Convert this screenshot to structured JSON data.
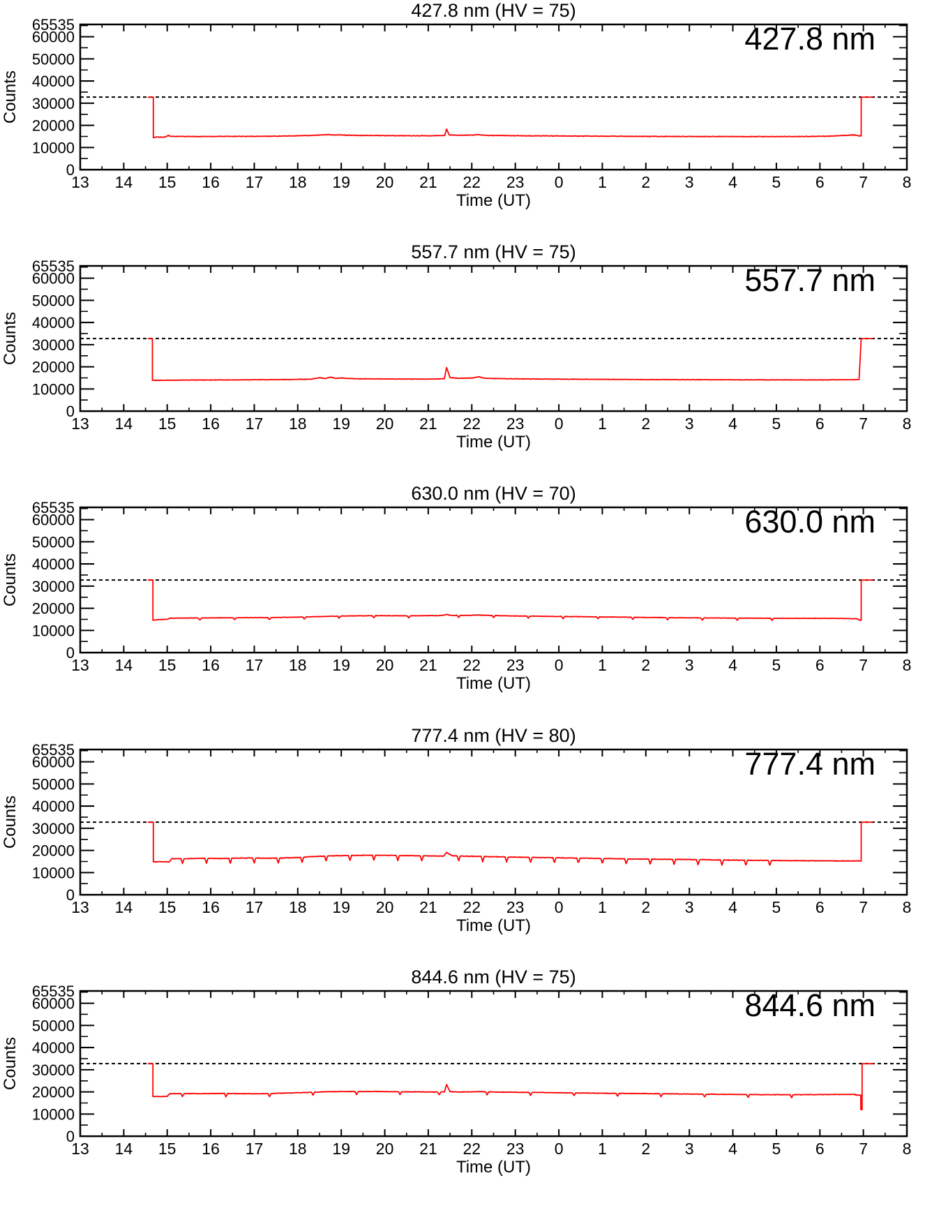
{
  "figure": {
    "background_color": "#ffffff",
    "series_color": "#ff0000",
    "axis_color": "#000000",
    "ylabel": "Counts",
    "xlabel": "Time (UT)",
    "x_tick_labels": [
      "13",
      "14",
      "15",
      "16",
      "17",
      "18",
      "19",
      "20",
      "21",
      "22",
      "23",
      "0",
      "1",
      "2",
      "3",
      "4",
      "5",
      "6",
      "7",
      "8"
    ],
    "x_start_hour": 13,
    "x_span_hours": 19,
    "y_major_ticks": [
      0,
      10000,
      20000,
      30000,
      40000,
      50000,
      60000
    ],
    "y_top_tick": 65535,
    "y_minor_step": 5000,
    "ylim": [
      0,
      65535
    ],
    "saturation_level": 32767
  },
  "chart_data": [
    {
      "type": "line",
      "title": "427.8 nm (HV = 75)",
      "label": "427.8 nm",
      "hv": 75,
      "noise_counts": 120,
      "dips": {
        "times": [],
        "depth": 0
      },
      "points": [
        [
          14.55,
          32700
        ],
        [
          14.68,
          32700
        ],
        [
          14.68,
          14400
        ],
        [
          14.75,
          14700
        ],
        [
          14.95,
          14700
        ],
        [
          15.02,
          15500
        ],
        [
          15.08,
          15000
        ],
        [
          15.3,
          15000
        ],
        [
          15.6,
          14950
        ],
        [
          16.0,
          15000
        ],
        [
          16.4,
          15050
        ],
        [
          16.8,
          15000
        ],
        [
          17.2,
          15050
        ],
        [
          17.6,
          15150
        ],
        [
          18.0,
          15300
        ],
        [
          18.3,
          15450
        ],
        [
          18.55,
          15650
        ],
        [
          18.7,
          15850
        ],
        [
          18.8,
          15600
        ],
        [
          18.95,
          15750
        ],
        [
          19.1,
          15550
        ],
        [
          19.4,
          15450
        ],
        [
          19.8,
          15400
        ],
        [
          20.2,
          15350
        ],
        [
          20.6,
          15300
        ],
        [
          21.0,
          15300
        ],
        [
          21.3,
          15400
        ],
        [
          21.38,
          15500
        ],
        [
          21.42,
          18300
        ],
        [
          21.48,
          15700
        ],
        [
          21.7,
          15550
        ],
        [
          22.0,
          15600
        ],
        [
          22.15,
          15850
        ],
        [
          22.3,
          15500
        ],
        [
          22.7,
          15400
        ],
        [
          23.2,
          15300
        ],
        [
          23.8,
          15250
        ],
        [
          0.5,
          15150
        ],
        [
          1.5,
          15050
        ],
        [
          2.5,
          15000
        ],
        [
          3.5,
          14950
        ],
        [
          4.5,
          14900
        ],
        [
          5.5,
          14950
        ],
        [
          6.2,
          15100
        ],
        [
          6.6,
          15500
        ],
        [
          6.8,
          15650
        ],
        [
          6.88,
          15300
        ],
        [
          6.95,
          15300
        ],
        [
          6.95,
          32700
        ],
        [
          7.22,
          32700
        ]
      ]
    },
    {
      "type": "line",
      "title": "557.7 nm (HV = 75)",
      "label": "557.7 nm",
      "hv": 75,
      "noise_counts": 100,
      "dips": {
        "times": [],
        "depth": 0
      },
      "points": [
        [
          14.55,
          32700
        ],
        [
          14.66,
          32700
        ],
        [
          14.66,
          13900
        ],
        [
          15.0,
          13950
        ],
        [
          15.4,
          14000
        ],
        [
          15.9,
          14050
        ],
        [
          16.4,
          14100
        ],
        [
          16.9,
          14150
        ],
        [
          17.4,
          14200
        ],
        [
          17.9,
          14300
        ],
        [
          18.3,
          14400
        ],
        [
          18.5,
          15100
        ],
        [
          18.62,
          14700
        ],
        [
          18.75,
          15300
        ],
        [
          18.88,
          14800
        ],
        [
          19.0,
          15000
        ],
        [
          19.15,
          14700
        ],
        [
          19.4,
          14600
        ],
        [
          19.8,
          14550
        ],
        [
          20.3,
          14500
        ],
        [
          20.8,
          14450
        ],
        [
          21.2,
          14500
        ],
        [
          21.37,
          14650
        ],
        [
          21.42,
          19700
        ],
        [
          21.5,
          15100
        ],
        [
          21.7,
          14800
        ],
        [
          22.0,
          14950
        ],
        [
          22.15,
          15500
        ],
        [
          22.3,
          14850
        ],
        [
          22.6,
          14700
        ],
        [
          23.0,
          14600
        ],
        [
          23.5,
          14500
        ],
        [
          0.2,
          14400
        ],
        [
          1.0,
          14350
        ],
        [
          2.0,
          14250
        ],
        [
          3.0,
          14200
        ],
        [
          4.0,
          14150
        ],
        [
          5.0,
          14100
        ],
        [
          6.0,
          14100
        ],
        [
          6.5,
          14150
        ],
        [
          6.9,
          14200
        ],
        [
          6.95,
          32700
        ],
        [
          7.22,
          32700
        ]
      ]
    },
    {
      "type": "line",
      "title": "630.0 nm (HV = 70)",
      "label": "630.0 nm",
      "hv": 70,
      "noise_counts": 90,
      "dips": {
        "times": [
          15.75,
          16.55,
          17.35,
          18.15,
          18.95,
          19.75,
          20.55,
          21.7,
          22.5,
          23.3,
          0.1,
          0.9,
          1.7,
          2.5,
          3.3,
          4.1,
          4.9
        ],
        "depth": 1000
      },
      "points": [
        [
          14.55,
          32700
        ],
        [
          14.67,
          32700
        ],
        [
          14.67,
          14600
        ],
        [
          14.8,
          14900
        ],
        [
          15.0,
          15000
        ],
        [
          15.05,
          15500
        ],
        [
          15.4,
          15600
        ],
        [
          15.9,
          15650
        ],
        [
          16.4,
          15700
        ],
        [
          16.9,
          15750
        ],
        [
          17.4,
          15800
        ],
        [
          17.9,
          15950
        ],
        [
          18.4,
          16200
        ],
        [
          18.9,
          16450
        ],
        [
          19.4,
          16600
        ],
        [
          19.9,
          16650
        ],
        [
          20.4,
          16600
        ],
        [
          20.9,
          16650
        ],
        [
          21.3,
          16700
        ],
        [
          21.42,
          17200
        ],
        [
          21.55,
          16750
        ],
        [
          21.9,
          16800
        ],
        [
          22.15,
          16950
        ],
        [
          22.4,
          16750
        ],
        [
          22.9,
          16550
        ],
        [
          23.4,
          16450
        ],
        [
          0.0,
          16300
        ],
        [
          0.6,
          16200
        ],
        [
          1.2,
          16050
        ],
        [
          1.9,
          15900
        ],
        [
          2.6,
          15750
        ],
        [
          3.3,
          15650
        ],
        [
          4.0,
          15550
        ],
        [
          4.7,
          15500
        ],
        [
          5.4,
          15450
        ],
        [
          6.0,
          15450
        ],
        [
          6.5,
          15400
        ],
        [
          6.85,
          15300
        ],
        [
          6.92,
          14600
        ],
        [
          6.95,
          14600
        ],
        [
          6.95,
          32700
        ],
        [
          7.22,
          32700
        ]
      ]
    },
    {
      "type": "line",
      "title": "777.4 nm (HV = 80)",
      "label": "777.4 nm",
      "hv": 80,
      "noise_counts": 130,
      "dips": {
        "times": [
          15.35,
          15.9,
          16.45,
          17.0,
          17.55,
          18.1,
          18.65,
          19.2,
          19.75,
          20.3,
          20.85,
          21.7,
          22.25,
          22.8,
          23.35,
          23.9,
          0.45,
          1.0,
          1.55,
          2.1,
          2.65,
          3.2,
          3.75,
          4.3,
          4.85
        ],
        "depth": 2300
      },
      "points": [
        [
          14.55,
          32700
        ],
        [
          14.68,
          32700
        ],
        [
          14.68,
          14850
        ],
        [
          15.05,
          14850
        ],
        [
          15.1,
          16250
        ],
        [
          15.45,
          16300
        ],
        [
          15.85,
          16450
        ],
        [
          16.2,
          16350
        ],
        [
          16.6,
          16500
        ],
        [
          17.0,
          16600
        ],
        [
          17.35,
          16500
        ],
        [
          17.7,
          16600
        ],
        [
          18.05,
          16850
        ],
        [
          18.4,
          17250
        ],
        [
          18.7,
          17550
        ],
        [
          19.0,
          17650
        ],
        [
          19.35,
          17750
        ],
        [
          19.7,
          17850
        ],
        [
          20.0,
          17800
        ],
        [
          20.35,
          17700
        ],
        [
          20.7,
          17600
        ],
        [
          21.05,
          17500
        ],
        [
          21.35,
          17450
        ],
        [
          21.42,
          19100
        ],
        [
          21.55,
          17550
        ],
        [
          21.8,
          17450
        ],
        [
          22.1,
          17300
        ],
        [
          22.4,
          17200
        ],
        [
          22.8,
          17050
        ],
        [
          23.2,
          16900
        ],
        [
          23.7,
          16750
        ],
        [
          0.2,
          16600
        ],
        [
          0.7,
          16450
        ],
        [
          1.2,
          16300
        ],
        [
          1.7,
          16150
        ],
        [
          2.2,
          16050
        ],
        [
          2.7,
          15950
        ],
        [
          3.2,
          15850
        ],
        [
          3.7,
          15700
        ],
        [
          4.2,
          15600
        ],
        [
          4.7,
          15500
        ],
        [
          5.2,
          15400
        ],
        [
          5.7,
          15350
        ],
        [
          6.2,
          15300
        ],
        [
          6.6,
          15250
        ],
        [
          6.95,
          15250
        ],
        [
          6.95,
          32700
        ],
        [
          7.22,
          32700
        ]
      ]
    },
    {
      "type": "line",
      "title": "844.6 nm (HV = 75)",
      "label": "844.6 nm",
      "hv": 75,
      "noise_counts": 110,
      "dips": {
        "times": [
          15.35,
          16.35,
          17.35,
          18.35,
          19.35,
          20.35,
          21.25,
          22.35,
          23.35,
          0.35,
          1.35,
          2.35,
          3.35,
          4.35,
          5.35
        ],
        "depth": 1400
      },
      "points": [
        [
          14.55,
          32700
        ],
        [
          14.67,
          32700
        ],
        [
          14.67,
          17900
        ],
        [
          15.0,
          17950
        ],
        [
          15.05,
          19150
        ],
        [
          15.4,
          19250
        ],
        [
          15.8,
          19200
        ],
        [
          16.2,
          19300
        ],
        [
          16.6,
          19200
        ],
        [
          17.0,
          19150
        ],
        [
          17.35,
          19250
        ],
        [
          17.7,
          19450
        ],
        [
          18.05,
          19650
        ],
        [
          18.4,
          19900
        ],
        [
          18.75,
          20100
        ],
        [
          19.1,
          20200
        ],
        [
          19.45,
          20150
        ],
        [
          19.8,
          20200
        ],
        [
          20.1,
          20100
        ],
        [
          20.45,
          20050
        ],
        [
          20.8,
          20000
        ],
        [
          21.1,
          19950
        ],
        [
          21.37,
          19950
        ],
        [
          21.42,
          23300
        ],
        [
          21.5,
          20100
        ],
        [
          21.75,
          19950
        ],
        [
          22.0,
          20000
        ],
        [
          22.2,
          20150
        ],
        [
          22.5,
          19950
        ],
        [
          22.9,
          19850
        ],
        [
          23.4,
          19750
        ],
        [
          0.0,
          19600
        ],
        [
          0.6,
          19500
        ],
        [
          1.2,
          19350
        ],
        [
          1.8,
          19250
        ],
        [
          2.4,
          19150
        ],
        [
          3.0,
          19000
        ],
        [
          3.6,
          18900
        ],
        [
          4.2,
          18850
        ],
        [
          4.8,
          18750
        ],
        [
          5.4,
          18750
        ],
        [
          6.0,
          18800
        ],
        [
          6.5,
          18850
        ],
        [
          6.82,
          18850
        ],
        [
          6.82,
          18550
        ],
        [
          6.94,
          18550
        ],
        [
          6.94,
          12000
        ],
        [
          6.97,
          12000
        ],
        [
          6.97,
          32700
        ],
        [
          7.25,
          32700
        ]
      ]
    }
  ]
}
